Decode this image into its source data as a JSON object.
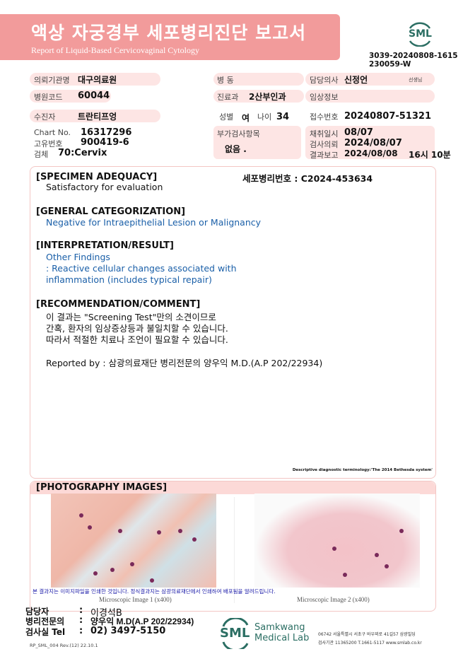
{
  "header": {
    "title": "액상 자궁경부 세포병리진단 보고서",
    "subtitle": "Report of Liquid-Based Cervicovaginal Cytology",
    "logo_text": "SML",
    "doc_id_1": "3039-20240808-1615",
    "doc_id_2": "230059-W"
  },
  "patient": {
    "institution_label": "의뢰기관명",
    "institution": "대구의료원",
    "ward_label": "병  동",
    "doctor_label": "담당의사",
    "doctor": "신정언",
    "doctor_suffix": "선생님",
    "hospital_code_label": "병원코드",
    "hospital_code": "60044",
    "department_label": "진료과",
    "department": "2산부인과",
    "clinical_info_label": "임상정보",
    "patient_label": "수진자",
    "patient_name": "트란티프엉",
    "sex_label": "성별",
    "sex": "여",
    "age_label": "나이",
    "age": "34",
    "receipt_label": "접수번호",
    "receipt_no": "20240807-51321",
    "chart_label": "Chart No.",
    "chart_no": "16317296",
    "unique_label": "고유번호",
    "unique_no": "900419-6",
    "specimen_label": "검체",
    "specimen": "70:Cervix",
    "additional_label": "부가검사항목",
    "additional": "없음 .",
    "collect_label": "채취일시",
    "collect_date": "08/07",
    "request_label": "검사의뢰",
    "request_date": "2024/08/07",
    "report_label": "결과보고",
    "report_date": "2024/08/08",
    "report_time": "16시 10분"
  },
  "result": {
    "cyto_no": "세포병리번호 : C2024-453634",
    "adequacy_heading": "[SPECIMEN ADEQUACY]",
    "adequacy": "Satisfactory for evaluation",
    "category_heading": "[GENERAL CATEGORIZATION]",
    "category": "Negative for Intraepithelial Lesion or Malignancy",
    "interp_heading": "[INTERPRETATION/RESULT]",
    "interp_1": "Other Findings",
    "interp_2": ": Reactive cellular changes associated with",
    "interp_3": "inflammation (includes typical repair)",
    "rec_heading": "[RECOMMENDATION/COMMENT]",
    "rec_1": "이 결과는 \"Screening Test\"만의 소견이므로",
    "rec_2": "간혹, 환자의 임상증상등과 불일치할 수 있습니다.",
    "rec_3": "따라서 적절한 치료나 조언이 필요할 수 있습니다.",
    "reported_by": "Reported by : 삼광의료재단 병리전문의 양우익 M.D.(A.P 202/22934)",
    "terminology": "Descriptive diagnostic terminology:'The 2014 Bethesda system'"
  },
  "photos": {
    "heading": "[PHOTOGRAPHY IMAGES]",
    "caption_1": "Microscopic Image 1 (x400)",
    "caption_2": "Microscopic Image 2 (x400)",
    "notice": "본 결과지는 이미지파일을 인쇄한 것입니다. 정식결과지는 삼광의료재단에서 인쇄하여 배포됨을 알려드립니다."
  },
  "footer": {
    "staff_label": "담당자",
    "staff": "이경석B",
    "pathologist_label": "병리전문의",
    "pathologist": "양우익 M.D(A.P 202/22934)",
    "tel_label": "검사실 Tel",
    "tel": "02) 3497-5150",
    "colon": ":",
    "form_no": "RP_SML_004  Rev.(12) 22.10.1",
    "lab_name_1": "Samkwang",
    "lab_name_2": "Medical Lab",
    "logo_text": "SML",
    "address": "06742 서울특별시 서초구 바우뫼로 41길57 삼광빌딩",
    "lab_info": "검사기관 11365200 T.1661-5117 www.smlab.co.kr"
  },
  "colors": {
    "band": "#f29b9b",
    "pill": "#fde5e4",
    "result_blue": "#1a5fa8",
    "logo_green": "#2b6e63"
  }
}
